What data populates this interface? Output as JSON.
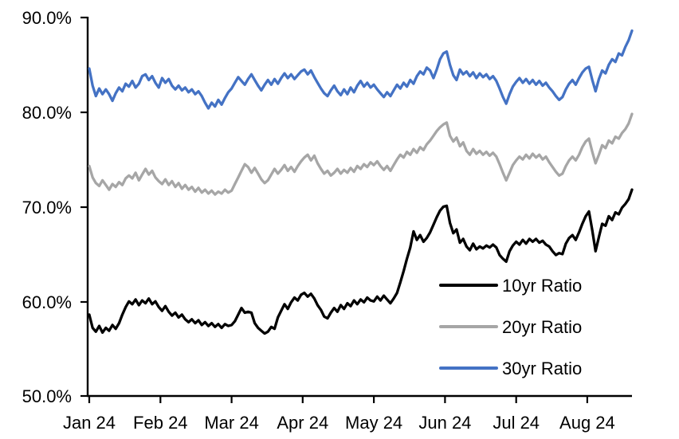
{
  "chart_data": {
    "type": "line",
    "title": "",
    "xlabel": "",
    "ylabel": "",
    "grid": false,
    "legend_position": "inside-lower-right",
    "x_axis": {
      "tick_labels": [
        "Jan 24",
        "Feb 24",
        "Mar 24",
        "Apr 24",
        "May 24",
        "Jun 24",
        "Jul 24",
        "Aug 24"
      ],
      "tick_indices": [
        0,
        21.5,
        43,
        64.5,
        86,
        107.5,
        129,
        150.5
      ],
      "points_total": 165
    },
    "y_axis": {
      "tick_labels": [
        "90.0%",
        "80.0%",
        "70.0%",
        "60.0%",
        "50.0%"
      ],
      "tick_values": [
        90,
        80,
        70,
        60,
        50
      ],
      "min": 50,
      "max": 90,
      "unit": "percent"
    },
    "series": [
      {
        "name": "10yr Ratio",
        "color": "#000000",
        "values": [
          58.6,
          57.2,
          56.8,
          57.4,
          56.7,
          57.2,
          56.9,
          57.5,
          57.1,
          57.7,
          58.6,
          59.4,
          60.0,
          59.7,
          60.2,
          59.6,
          60.1,
          59.8,
          60.3,
          59.7,
          60.0,
          59.4,
          59.0,
          59.5,
          58.9,
          58.5,
          58.8,
          58.3,
          58.6,
          58.1,
          57.8,
          58.1,
          57.7,
          58.0,
          57.5,
          57.8,
          57.4,
          57.7,
          57.3,
          57.6,
          57.2,
          57.6,
          57.4,
          57.5,
          57.9,
          58.6,
          59.3,
          58.8,
          58.9,
          58.8,
          57.7,
          57.2,
          56.9,
          56.6,
          56.8,
          57.3,
          57.1,
          58.3,
          59.0,
          59.7,
          59.2,
          59.9,
          60.4,
          60.1,
          60.7,
          60.9,
          60.5,
          60.8,
          60.3,
          59.6,
          59.1,
          58.4,
          58.2,
          58.8,
          59.3,
          58.9,
          59.6,
          59.2,
          59.8,
          59.5,
          60.1,
          59.7,
          60.2,
          59.9,
          60.4,
          60.1,
          60.0,
          60.5,
          60.1,
          60.6,
          60.2,
          59.8,
          60.3,
          60.9,
          62.0,
          63.2,
          64.5,
          65.7,
          67.4,
          66.5,
          67.0,
          66.3,
          66.7,
          67.3,
          68.1,
          68.9,
          69.6,
          70.0,
          70.1,
          68.3,
          67.2,
          67.6,
          66.2,
          66.6,
          65.8,
          65.4,
          66.1,
          65.5,
          65.8,
          65.6,
          65.9,
          65.7,
          66.0,
          65.7,
          64.9,
          64.5,
          64.2,
          65.3,
          65.9,
          66.3,
          66.0,
          66.5,
          66.1,
          66.6,
          66.3,
          66.6,
          66.2,
          66.4,
          66.0,
          65.8,
          65.3,
          64.9,
          65.1,
          65.0,
          66.1,
          66.7,
          67.0,
          66.5,
          67.3,
          68.2,
          69.0,
          69.5,
          67.5,
          65.3,
          66.8,
          68.2,
          68.0,
          69.0,
          68.6,
          69.4,
          69.2,
          69.9,
          70.3,
          70.8,
          71.8
        ]
      },
      {
        "name": "20yr Ratio",
        "color": "#A6A6A6",
        "values": [
          74.3,
          73.1,
          72.5,
          72.2,
          72.8,
          72.3,
          71.8,
          72.4,
          72.1,
          72.6,
          72.3,
          73.0,
          73.3,
          73.0,
          73.6,
          72.8,
          73.4,
          74.0,
          73.4,
          73.8,
          73.1,
          72.7,
          72.4,
          72.9,
          72.3,
          72.7,
          72.1,
          72.5,
          71.9,
          72.3,
          71.8,
          72.1,
          71.6,
          72.0,
          71.5,
          71.8,
          71.4,
          71.7,
          71.3,
          71.6,
          71.4,
          71.8,
          71.5,
          71.7,
          72.4,
          73.1,
          73.8,
          74.5,
          74.2,
          73.6,
          74.1,
          73.5,
          72.9,
          72.5,
          72.8,
          73.4,
          74.0,
          73.5,
          73.9,
          74.4,
          73.8,
          74.2,
          73.7,
          74.3,
          74.8,
          75.2,
          75.5,
          74.9,
          75.4,
          74.6,
          74.0,
          73.5,
          73.8,
          73.3,
          73.6,
          74.0,
          73.5,
          73.9,
          73.6,
          74.1,
          73.7,
          74.3,
          74.0,
          74.5,
          74.2,
          74.7,
          74.4,
          74.8,
          74.3,
          73.9,
          74.3,
          73.8,
          74.4,
          75.0,
          75.5,
          75.2,
          75.8,
          75.5,
          76.1,
          75.7,
          76.3,
          76.0,
          76.6,
          77.0,
          77.5,
          78.0,
          78.4,
          78.7,
          78.9,
          77.5,
          76.9,
          77.3,
          76.4,
          76.8,
          75.9,
          75.5,
          76.1,
          75.6,
          75.9,
          75.5,
          75.8,
          75.4,
          75.7,
          75.3,
          74.5,
          73.6,
          72.8,
          73.6,
          74.4,
          74.9,
          75.3,
          75.0,
          75.5,
          75.1,
          75.6,
          75.2,
          75.5,
          75.0,
          75.3,
          74.7,
          74.2,
          73.7,
          73.3,
          73.5,
          74.3,
          74.9,
          75.3,
          74.9,
          75.5,
          76.3,
          76.9,
          77.2,
          75.8,
          74.6,
          75.5,
          76.5,
          76.2,
          77.0,
          76.7,
          77.4,
          77.2,
          77.8,
          78.2,
          78.8,
          79.8
        ]
      },
      {
        "name": "30yr Ratio",
        "color": "#4472C4",
        "values": [
          84.6,
          82.8,
          81.7,
          82.5,
          81.9,
          82.4,
          81.9,
          81.2,
          82.0,
          82.6,
          82.2,
          83.0,
          82.7,
          83.3,
          82.6,
          83.0,
          83.8,
          84.0,
          83.4,
          83.8,
          83.1,
          82.6,
          83.6,
          83.1,
          83.5,
          82.8,
          82.4,
          82.8,
          82.3,
          82.6,
          82.1,
          82.4,
          81.9,
          82.2,
          81.7,
          81.0,
          80.4,
          81.0,
          80.6,
          81.3,
          80.8,
          81.5,
          82.1,
          82.5,
          83.1,
          83.7,
          83.3,
          82.9,
          83.5,
          84.0,
          83.4,
          82.8,
          82.3,
          82.9,
          83.4,
          82.9,
          83.5,
          83.0,
          83.6,
          84.1,
          83.6,
          84.0,
          83.5,
          83.9,
          84.3,
          84.5,
          84.0,
          84.4,
          83.7,
          83.1,
          82.5,
          82.0,
          81.7,
          82.3,
          82.8,
          82.2,
          81.8,
          82.4,
          81.9,
          82.6,
          82.1,
          82.8,
          83.3,
          82.7,
          83.1,
          82.6,
          82.9,
          82.4,
          82.0,
          81.6,
          82.1,
          81.7,
          82.3,
          82.9,
          82.5,
          83.1,
          82.7,
          83.4,
          83.0,
          83.8,
          84.3,
          84.0,
          84.7,
          84.4,
          83.6,
          84.5,
          85.6,
          86.2,
          86.4,
          85.0,
          83.9,
          83.4,
          84.5,
          84.0,
          84.3,
          83.8,
          84.2,
          83.6,
          84.1,
          83.7,
          84.0,
          83.5,
          83.8,
          83.3,
          82.5,
          81.6,
          80.9,
          81.9,
          82.7,
          83.2,
          83.6,
          83.1,
          83.5,
          83.0,
          83.4,
          82.9,
          83.3,
          82.8,
          83.1,
          82.6,
          82.2,
          81.7,
          81.3,
          81.6,
          82.4,
          83.0,
          83.4,
          82.9,
          83.6,
          84.2,
          84.6,
          84.8,
          83.4,
          82.2,
          83.5,
          84.4,
          84.1,
          85.0,
          85.6,
          85.3,
          86.2,
          86.0,
          86.9,
          87.6,
          88.6
        ]
      }
    ]
  }
}
